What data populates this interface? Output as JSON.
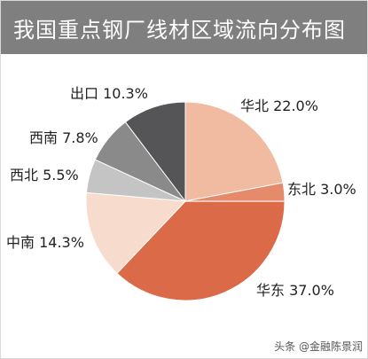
{
  "chart_data": {
    "type": "pie",
    "title": "我国重点钢厂线材区域流向分布图",
    "slices": [
      {
        "name": "华北",
        "value": 22.0,
        "label": "华北 22.0%",
        "color": "#f0bba1"
      },
      {
        "name": "东北",
        "value": 3.0,
        "label": "东北 3.0%",
        "color": "#e48b6b"
      },
      {
        "name": "华东",
        "value": 37.0,
        "label": "华东 37.0%",
        "color": "#db6a48"
      },
      {
        "name": "中南",
        "value": 14.3,
        "label": "中南 14.3%",
        "color": "#f7dccd"
      },
      {
        "name": "西北",
        "value": 5.5,
        "label": "西北 5.5%",
        "color": "#c4c4c4"
      },
      {
        "name": "西南",
        "value": 7.8,
        "label": "西南 7.8%",
        "color": "#8a8a8a"
      },
      {
        "name": "出口",
        "value": 10.3,
        "label": "出口 10.3%",
        "color": "#555557"
      }
    ],
    "start_angle": "12 o'clock, clockwise"
  },
  "watermark": "头条 @金融陈景润"
}
